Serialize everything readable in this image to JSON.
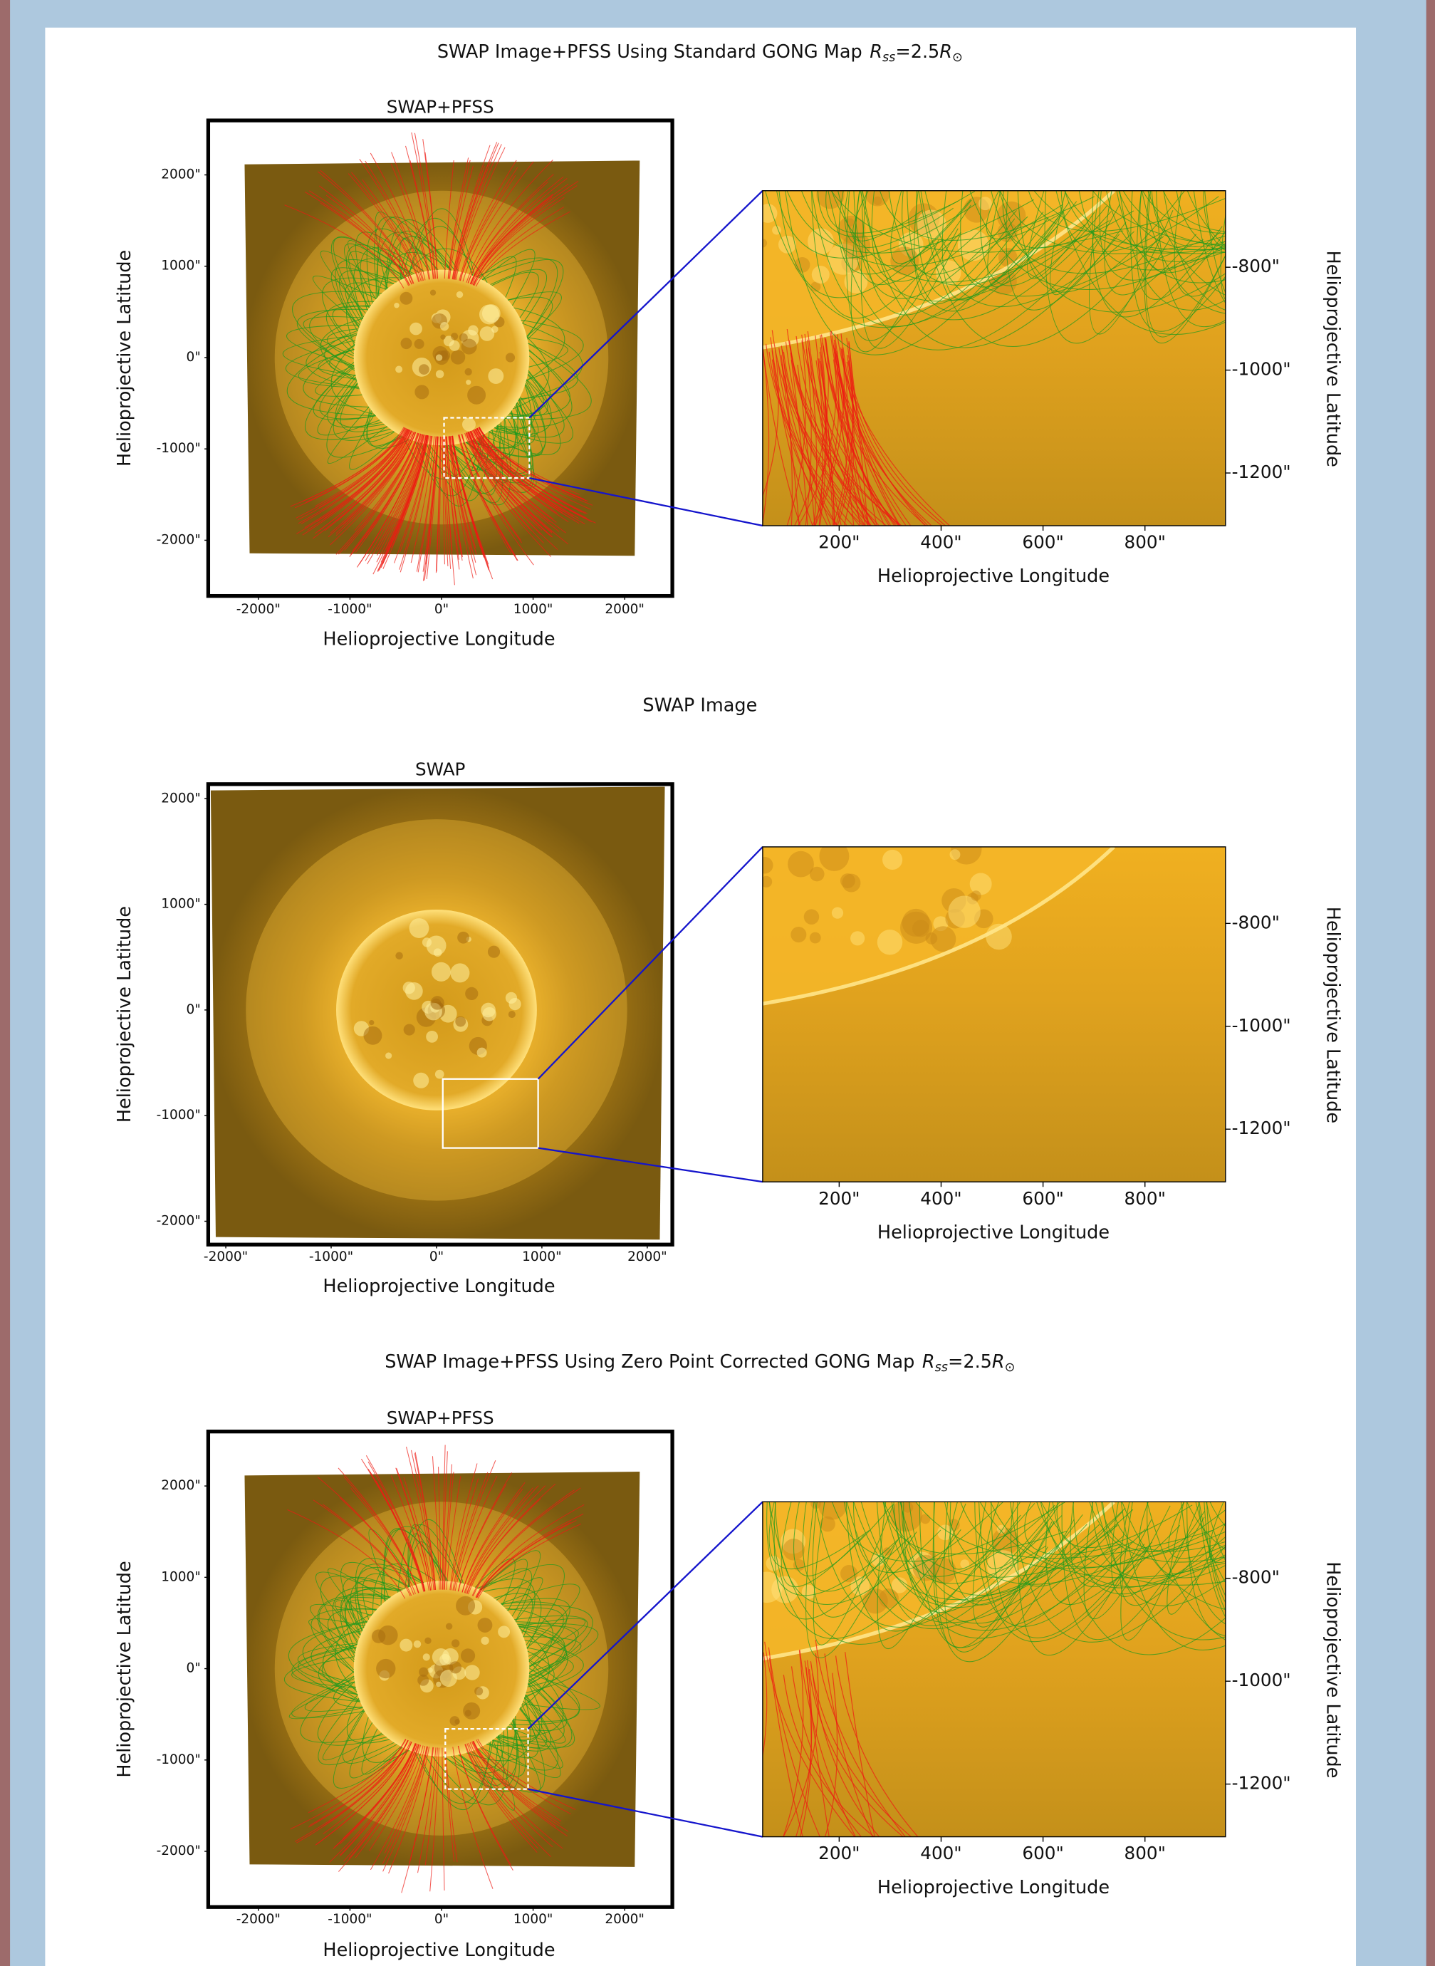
{
  "panels": [
    {
      "title": "SWAP Image+PFSS Using Standard GONG Map",
      "title_math": {
        "symbol": "R",
        "subscript": "ss",
        "equals": "=2.5",
        "unit": "R",
        "unit_subscript": "⊙"
      },
      "full_view": {
        "title": "SWAP+PFSS",
        "xlabel": "Helioprojective Longitude",
        "ylabel": "Helioprojective Latitude",
        "xticks": [
          {
            "value": -2000,
            "label": "-2000\""
          },
          {
            "value": -1000,
            "label": "-1000\""
          },
          {
            "value": 0,
            "label": "0\""
          },
          {
            "value": 1000,
            "label": "1000\""
          },
          {
            "value": 2000,
            "label": "2000\""
          }
        ],
        "yticks": [
          {
            "value": 2000,
            "label": "2000\""
          },
          {
            "value": 1000,
            "label": "1000\""
          },
          {
            "value": 0,
            "label": "0\""
          },
          {
            "value": -1000,
            "label": "-1000\""
          },
          {
            "value": -2000,
            "label": "-2000\""
          }
        ]
      },
      "zoom_view": {
        "xlabel": "Helioprojective Longitude",
        "ylabel": "Helioprojective Latitude",
        "xticks": [
          {
            "value": 200,
            "label": "200\""
          },
          {
            "value": 400,
            "label": "400\""
          },
          {
            "value": 600,
            "label": "600\""
          },
          {
            "value": 800,
            "label": "800\""
          }
        ],
        "yticks": [
          {
            "value": -800,
            "label": "-800\""
          },
          {
            "value": -1000,
            "label": "-1000\""
          },
          {
            "value": -1200,
            "label": "-1200\""
          }
        ]
      }
    },
    {
      "title": "SWAP Image",
      "full_view": {
        "title": "SWAP",
        "xlabel": "Helioprojective Longitude",
        "ylabel": "Helioprojective Latitude",
        "xticks": [
          {
            "value": -2000,
            "label": "-2000\""
          },
          {
            "value": -1000,
            "label": "-1000\""
          },
          {
            "value": 0,
            "label": "0\""
          },
          {
            "value": 1000,
            "label": "1000\""
          },
          {
            "value": 2000,
            "label": "2000\""
          }
        ],
        "yticks": [
          {
            "value": 2000,
            "label": "2000\""
          },
          {
            "value": 1000,
            "label": "1000\""
          },
          {
            "value": 0,
            "label": "0\""
          },
          {
            "value": -1000,
            "label": "-1000\""
          },
          {
            "value": -2000,
            "label": "-2000\""
          }
        ]
      },
      "zoom_view": {
        "xlabel": "Helioprojective Longitude",
        "ylabel": "Helioprojective Latitude",
        "xticks": [
          {
            "value": 200,
            "label": "200\""
          },
          {
            "value": 400,
            "label": "400\""
          },
          {
            "value": 600,
            "label": "600\""
          },
          {
            "value": 800,
            "label": "800\""
          }
        ],
        "yticks": [
          {
            "value": -800,
            "label": "-800\""
          },
          {
            "value": -1000,
            "label": "-1000\""
          },
          {
            "value": -1200,
            "label": "-1200\""
          }
        ]
      }
    },
    {
      "title": "SWAP Image+PFSS Using Zero Point Corrected GONG Map",
      "title_math": {
        "symbol": "R",
        "subscript": "ss",
        "equals": "=2.5",
        "unit": "R",
        "unit_subscript": "⊙"
      },
      "full_view": {
        "title": "SWAP+PFSS",
        "xlabel": "Helioprojective Longitude",
        "ylabel": "Helioprojective Latitude",
        "xticks": [
          {
            "value": -2000,
            "label": "-2000\""
          },
          {
            "value": -1000,
            "label": "-1000\""
          },
          {
            "value": 0,
            "label": "0\""
          },
          {
            "value": 1000,
            "label": "1000\""
          },
          {
            "value": 2000,
            "label": "2000\""
          }
        ],
        "yticks": [
          {
            "value": 2000,
            "label": "2000\""
          },
          {
            "value": 1000,
            "label": "1000\""
          },
          {
            "value": 0,
            "label": "0\""
          },
          {
            "value": -1000,
            "label": "-1000\""
          },
          {
            "value": -2000,
            "label": "-2000\""
          }
        ]
      },
      "zoom_view": {
        "xlabel": "Helioprojective Longitude",
        "ylabel": "Helioprojective Latitude",
        "xticks": [
          {
            "value": 200,
            "label": "200\""
          },
          {
            "value": 400,
            "label": "400\""
          },
          {
            "value": 600,
            "label": "600\""
          },
          {
            "value": 800,
            "label": "800\""
          }
        ],
        "yticks": [
          {
            "value": -800,
            "label": "-800\""
          },
          {
            "value": -1000,
            "label": "-1000\""
          },
          {
            "value": -1200,
            "label": "-1200\""
          }
        ]
      }
    }
  ]
}
